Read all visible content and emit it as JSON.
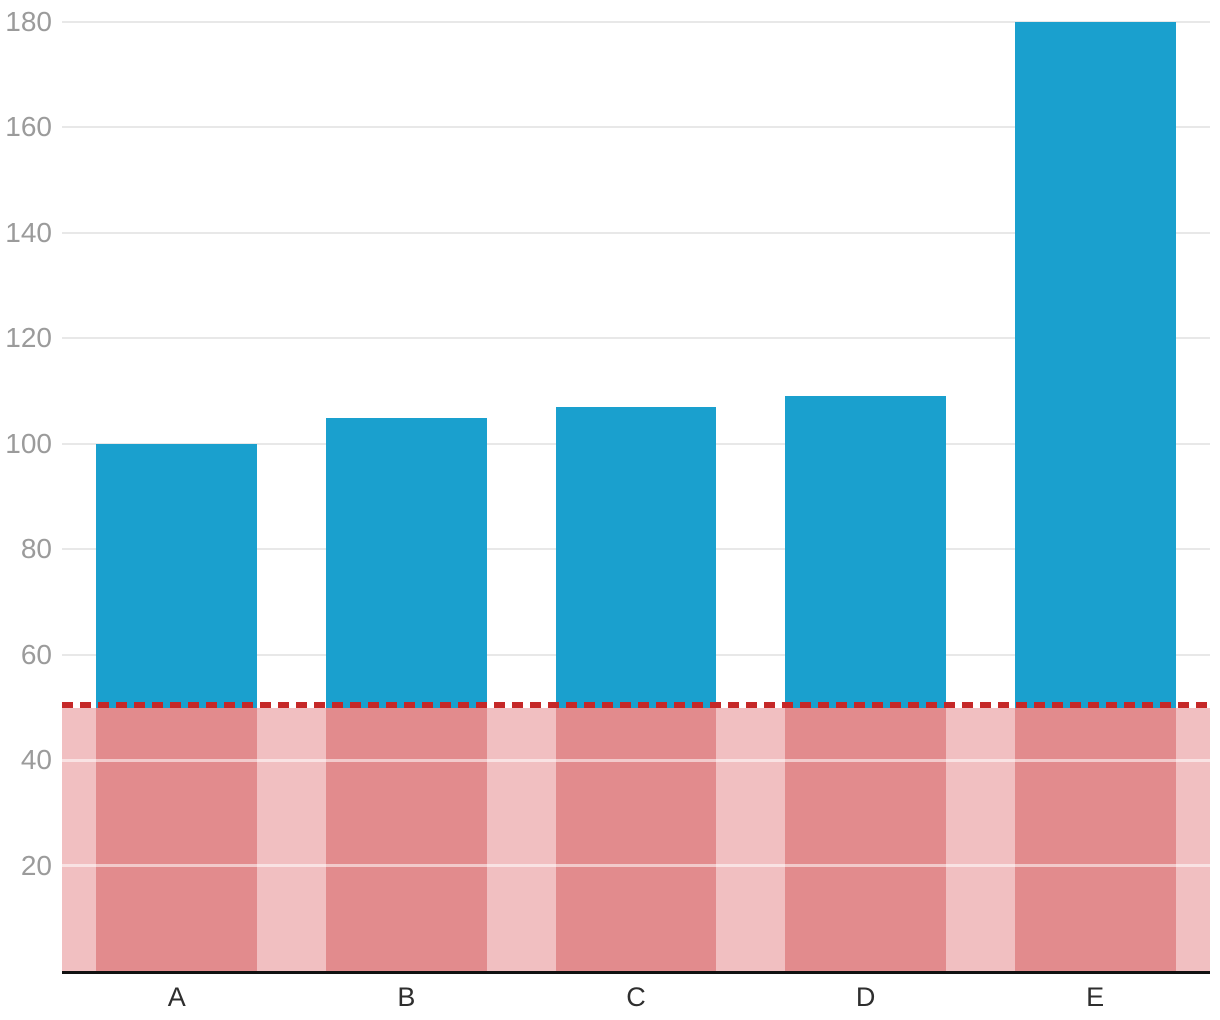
{
  "chart_data": {
    "type": "bar",
    "categories": [
      "A",
      "B",
      "C",
      "D",
      "E"
    ],
    "values": [
      100,
      105,
      107,
      109,
      180
    ],
    "title": "",
    "xlabel": "",
    "ylabel": "",
    "ylim": [
      0,
      184
    ],
    "yticks": [
      20,
      40,
      60,
      80,
      100,
      120,
      140,
      160,
      180
    ],
    "grid": true,
    "legend": false,
    "threshold": {
      "value": 50,
      "style": "dashed"
    },
    "colors": {
      "bar": "#1aa0ce",
      "bar_below_threshold": "#e28b8d",
      "threshold_band_fill": "#f1bfc1",
      "threshold_line": "#c52828",
      "gridline": "#e8e8e8",
      "band_gridline": "rgba(255,255,255,0.55)",
      "ytick_label": "#9b9b9b",
      "xtick_label": "#2e2e2e",
      "axis_line": "#111111",
      "background": "#ffffff"
    }
  }
}
